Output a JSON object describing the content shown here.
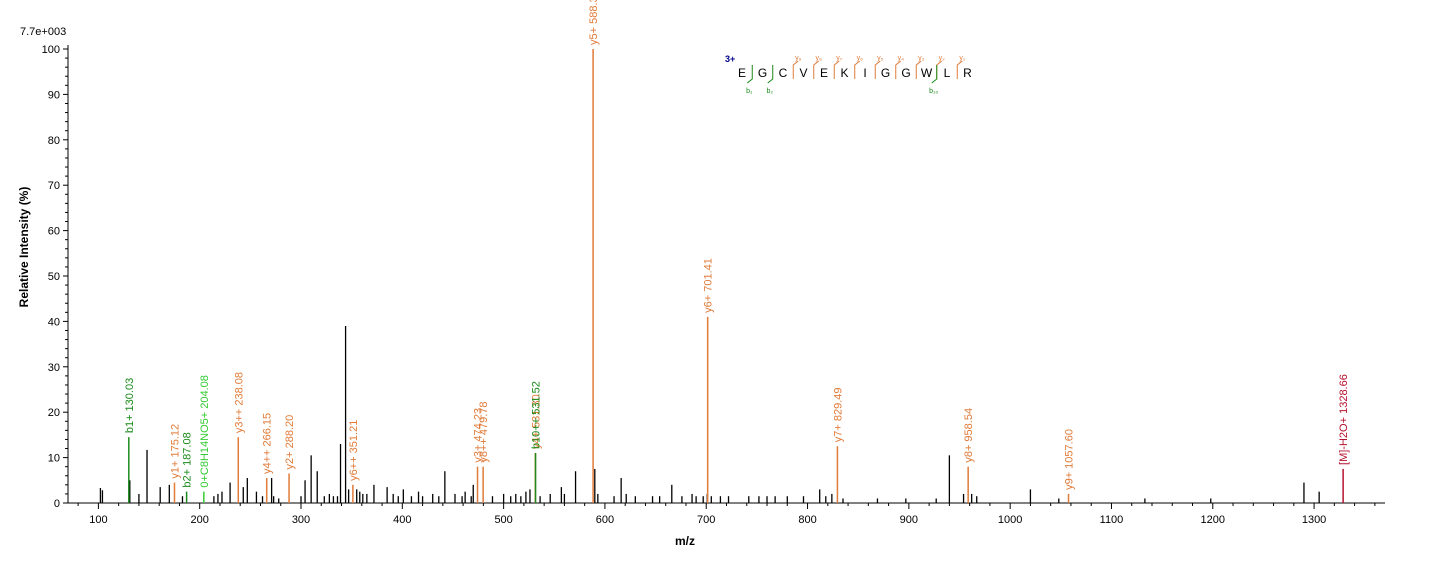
{
  "chart_data": {
    "type": "bar",
    "max_intensity_label": "7.7e+003",
    "xlabel": "m/z",
    "ylabel": "Relative   Intensity (%)",
    "xlim": [
      70,
      1370
    ],
    "ylim": [
      0,
      100
    ],
    "x_ticks": [
      100,
      200,
      300,
      400,
      500,
      600,
      700,
      800,
      900,
      1000,
      1100,
      1200,
      1300
    ],
    "y_ticks": [
      0,
      10,
      20,
      30,
      40,
      50,
      60,
      70,
      80,
      90,
      100
    ],
    "colors": {
      "unannotated": "#000000",
      "y_ion": "#e07b39",
      "b_ion": "#1a8a1a",
      "other_ion": "#33cc33",
      "precursor": "#b5122e",
      "charge": "#00008b"
    },
    "annotated_peaks": [
      {
        "mz": 130.03,
        "intensity": 14.5,
        "label": "b1+ 130.03",
        "kind": "b_ion"
      },
      {
        "mz": 175.12,
        "intensity": 4.5,
        "label": "y1+ 175.12",
        "kind": "y_ion"
      },
      {
        "mz": 187.08,
        "intensity": 2.5,
        "label": "b2+ 187.08",
        "kind": "b_ion"
      },
      {
        "mz": 204.08,
        "intensity": 2.5,
        "label": "0+C8H14NO5+ 204.08",
        "kind": "other_ion"
      },
      {
        "mz": 238.08,
        "intensity": 14.5,
        "label": "y3++ 238.08",
        "kind": "y_ion"
      },
      {
        "mz": 266.15,
        "intensity": 5.5,
        "label": "y4++ 266.15",
        "kind": "y_ion"
      },
      {
        "mz": 288.2,
        "intensity": 6.5,
        "label": "y2+ 288.20",
        "kind": "y_ion"
      },
      {
        "mz": 351.21,
        "intensity": 4.0,
        "label": "y6++ 351.21",
        "kind": "y_ion"
      },
      {
        "mz": 474.23,
        "intensity": 8.0,
        "label": "y3+ 474.23",
        "kind": "y_ion"
      },
      {
        "mz": 479.78,
        "intensity": 8.0,
        "label": "y8++ 479.78",
        "kind": "y_ion"
      },
      {
        "mz": 531.3,
        "intensity": 11.0,
        "label": "y4+ 531.30",
        "kind": "y_ion"
      },
      {
        "mz": 531.52,
        "intensity": 11.0,
        "label": "b10++ 531.52",
        "kind": "b_ion"
      },
      {
        "mz": 588.32,
        "intensity": 100,
        "label": "y5+ 588.32",
        "kind": "y_ion"
      },
      {
        "mz": 701.41,
        "intensity": 41.0,
        "label": "y6+ 701.41",
        "kind": "y_ion"
      },
      {
        "mz": 829.49,
        "intensity": 12.5,
        "label": "y7+ 829.49",
        "kind": "y_ion"
      },
      {
        "mz": 958.54,
        "intensity": 8.0,
        "label": "y8+ 958.54",
        "kind": "y_ion"
      },
      {
        "mz": 1057.6,
        "intensity": 2.0,
        "label": "y9+ 1057.60",
        "kind": "y_ion"
      },
      {
        "mz": 1328.66,
        "intensity": 7.5,
        "label": "[M]-H2O+ 1328.66",
        "kind": "precursor"
      }
    ],
    "unannotated_peaks": [
      [
        102,
        3.3
      ],
      [
        104,
        2.8
      ],
      [
        131,
        5.0
      ],
      [
        140,
        2.0
      ],
      [
        148,
        11.7
      ],
      [
        161,
        3.5
      ],
      [
        170,
        4.0
      ],
      [
        183,
        1.5
      ],
      [
        214,
        1.5
      ],
      [
        218,
        2.0
      ],
      [
        222,
        2.5
      ],
      [
        230,
        4.5
      ],
      [
        243,
        3.5
      ],
      [
        247,
        5.5
      ],
      [
        256,
        2.5
      ],
      [
        262,
        1.5
      ],
      [
        271,
        5.5
      ],
      [
        273,
        1.5
      ],
      [
        278,
        1.0
      ],
      [
        300,
        1.5
      ],
      [
        304,
        5.0
      ],
      [
        310,
        10.5
      ],
      [
        316,
        7.0
      ],
      [
        323,
        1.5
      ],
      [
        328,
        2.0
      ],
      [
        332,
        1.5
      ],
      [
        336,
        1.5
      ],
      [
        339,
        13.0
      ],
      [
        344,
        39.0
      ],
      [
        347,
        3.0
      ],
      [
        355,
        3.0
      ],
      [
        358,
        2.5
      ],
      [
        361,
        2.0
      ],
      [
        365,
        2.0
      ],
      [
        372,
        4.0
      ],
      [
        385,
        3.5
      ],
      [
        391,
        2.0
      ],
      [
        396,
        1.5
      ],
      [
        401,
        3.0
      ],
      [
        409,
        1.5
      ],
      [
        416,
        2.5
      ],
      [
        420,
        1.5
      ],
      [
        430,
        2.0
      ],
      [
        436,
        1.5
      ],
      [
        442,
        7.0
      ],
      [
        452,
        2.0
      ],
      [
        459,
        1.5
      ],
      [
        462,
        2.5
      ],
      [
        468,
        1.5
      ],
      [
        470,
        4.0
      ],
      [
        489,
        1.5
      ],
      [
        500,
        2.0
      ],
      [
        507,
        1.5
      ],
      [
        512,
        2.0
      ],
      [
        517,
        1.5
      ],
      [
        522,
        2.5
      ],
      [
        526,
        3.0
      ],
      [
        536,
        1.5
      ],
      [
        546,
        2.0
      ],
      [
        557,
        3.5
      ],
      [
        560,
        2.0
      ],
      [
        571,
        7.0
      ],
      [
        590,
        7.5
      ],
      [
        593,
        2.0
      ],
      [
        609,
        1.5
      ],
      [
        616,
        5.5
      ],
      [
        621,
        2.0
      ],
      [
        630,
        1.5
      ],
      [
        647,
        1.5
      ],
      [
        654,
        1.5
      ],
      [
        666,
        4.0
      ],
      [
        676,
        1.5
      ],
      [
        686,
        2.0
      ],
      [
        690,
        1.5
      ],
      [
        697,
        1.5
      ],
      [
        701,
        2.0
      ],
      [
        705,
        1.5
      ],
      [
        714,
        1.5
      ],
      [
        722,
        1.5
      ],
      [
        742,
        1.5
      ],
      [
        752,
        1.5
      ],
      [
        760,
        1.5
      ],
      [
        768,
        1.5
      ],
      [
        780,
        1.5
      ],
      [
        796,
        1.5
      ],
      [
        812,
        3.0
      ],
      [
        818,
        1.5
      ],
      [
        824,
        2.0
      ],
      [
        835,
        1.0
      ],
      [
        869,
        1.0
      ],
      [
        897,
        1.0
      ],
      [
        927,
        1.0
      ],
      [
        940,
        10.5
      ],
      [
        954,
        2.0
      ],
      [
        962,
        2.0
      ],
      [
        967,
        1.5
      ],
      [
        1020,
        3.0
      ],
      [
        1048,
        1.0
      ],
      [
        1133,
        1.0
      ],
      [
        1198,
        1.0
      ],
      [
        1290,
        4.5
      ],
      [
        1305,
        2.5
      ]
    ],
    "sequence": {
      "charge": "3+",
      "residues": [
        "E",
        "G",
        "C",
        "V",
        "E",
        "K",
        "I",
        "G",
        "G",
        "W",
        "L",
        "R"
      ],
      "y_ions": [
        "y₉",
        "y₈",
        "y₇",
        "y₆",
        "y₅",
        "y₄",
        "y₃",
        "y₂",
        "y₁"
      ],
      "y_ion_after_residue": [
        3,
        4,
        5,
        6,
        7,
        8,
        9,
        10,
        11
      ],
      "b_ions": [
        "b₁",
        "b₂",
        "b₁₀"
      ],
      "b_ion_after_residue": [
        1,
        2,
        10
      ]
    }
  }
}
